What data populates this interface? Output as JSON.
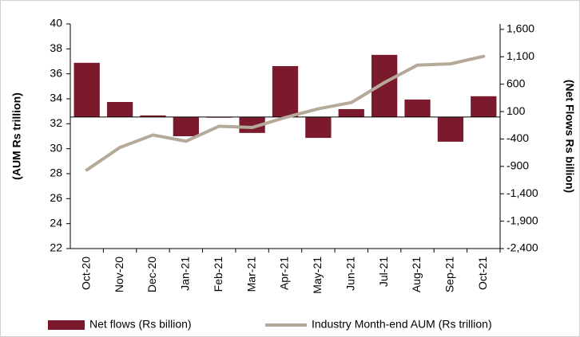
{
  "chart_data": {
    "type": "bar_line",
    "categories": [
      "Oct-20",
      "Nov-20",
      "Dec-20",
      "Jan-21",
      "Feb-21",
      "Mar-21",
      "Apr-21",
      "May-21",
      "Jun-21",
      "Jul-21",
      "Aug-21",
      "Sep-21",
      "Oct-21"
    ],
    "series": [
      {
        "name": "Net flows (Rs billion)",
        "type": "bar",
        "axis": "y2",
        "color": "#7b1a2c",
        "values": [
          990,
          275,
          30,
          -350,
          -10,
          -290,
          930,
          -380,
          145,
          1135,
          320,
          -450,
          380
        ]
      },
      {
        "name": "Industry Month-end AUM (Rs trillion)",
        "type": "line",
        "axis": "y",
        "color": "#b5a999",
        "values": [
          28.3,
          30.1,
          31.1,
          30.6,
          31.8,
          31.7,
          32.5,
          33.2,
          33.7,
          35.3,
          36.7,
          36.8,
          37.4
        ]
      }
    ],
    "ylabel": "(AUM Rs trillion)",
    "y2label": "(Net Flows Rs billion)",
    "ylim": [
      22,
      40
    ],
    "yticks": [
      22,
      24,
      26,
      28,
      30,
      32,
      34,
      36,
      38,
      40
    ],
    "y2lim": [
      -2400,
      1700
    ],
    "y2ticks": [
      {
        "value": -2400,
        "label": "-2,400"
      },
      {
        "value": -1900,
        "label": "-1,900"
      },
      {
        "value": -1400,
        "label": "-1,400"
      },
      -900,
      -400,
      100,
      600,
      {
        "value": 1100,
        "label": "1,100"
      },
      {
        "value": 1600,
        "label": "1,600"
      }
    ],
    "legend": "bottom"
  }
}
